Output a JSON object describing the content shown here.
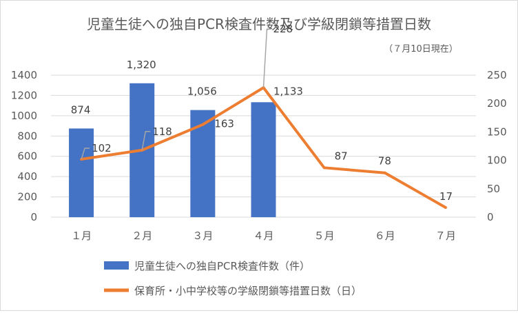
{
  "chart_data": {
    "type": "bar+line",
    "title": "児童生徒への独自PCR検査件数及び学級閉鎖等措置日数",
    "subtitle": "（７月10日現在）",
    "categories": [
      "１月",
      "２月",
      "３月",
      "４月",
      "５月",
      "６月",
      "７月"
    ],
    "series": [
      {
        "name": "児童生徒への独自PCR検査件数（件）",
        "type": "bar",
        "axis": "left",
        "color": "#4472c4",
        "values": [
          874,
          1320,
          1056,
          1133,
          null,
          null,
          null
        ],
        "labels": [
          "874",
          "1,320",
          "1,056",
          "1,133",
          "",
          "",
          ""
        ]
      },
      {
        "name": "保育所・小中学校等の学級閉鎖等措置日数（日）",
        "type": "line",
        "axis": "right",
        "color": "#ed7d31",
        "values": [
          102,
          118,
          163,
          228,
          87,
          78,
          17
        ],
        "labels": [
          "102",
          "118",
          "163",
          "228",
          "87",
          "78",
          "17"
        ]
      }
    ],
    "y_left": {
      "min": 0,
      "max": 1400,
      "step": 200,
      "ticks": [
        "0",
        "200",
        "400",
        "600",
        "800",
        "1000",
        "1200",
        "1400"
      ]
    },
    "y_right": {
      "min": 0,
      "max": 250,
      "step": 50,
      "ticks": [
        "0",
        "50",
        "100",
        "150",
        "200",
        "250"
      ]
    },
    "grid": true,
    "legend_position": "bottom"
  }
}
